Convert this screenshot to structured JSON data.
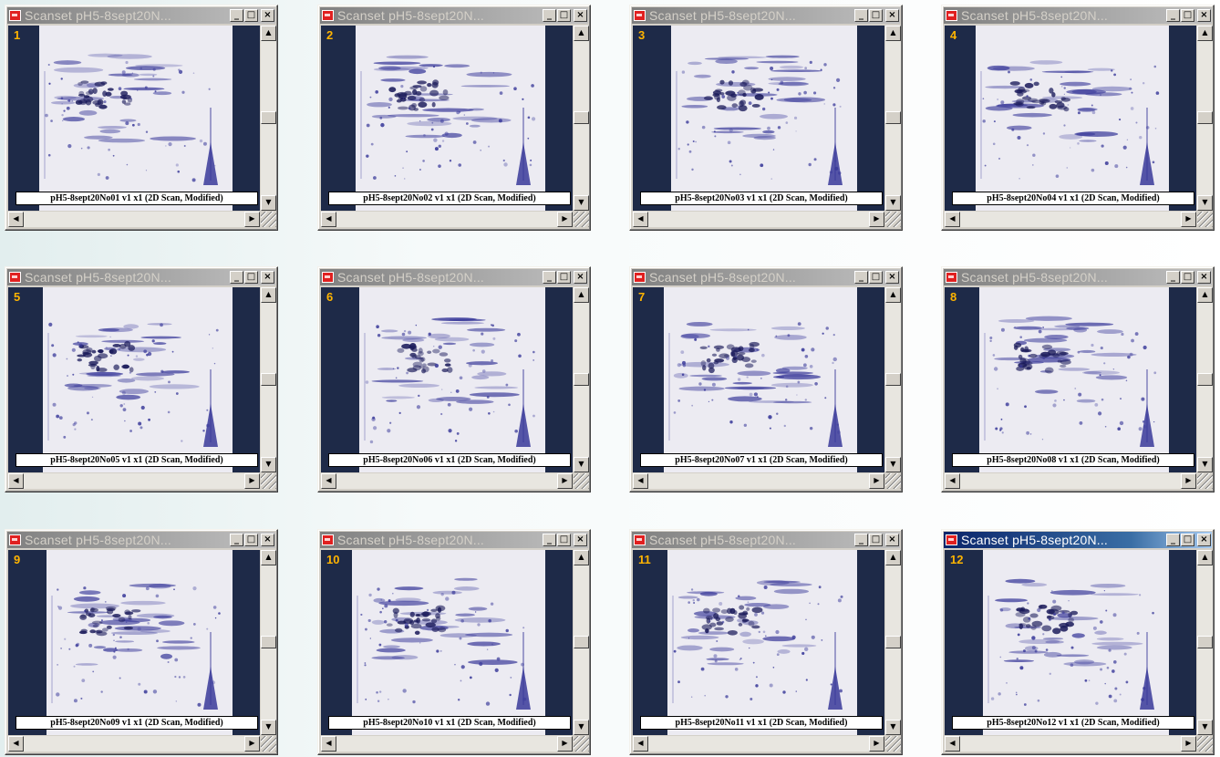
{
  "windows": [
    {
      "number": "1",
      "title": "Scanset pH5-8sept20N...",
      "caption": "pH5-8sept20No01 v1 x1 (2D Scan, Modified)",
      "active": false
    },
    {
      "number": "2",
      "title": "Scanset pH5-8sept20N...",
      "caption": "pH5-8sept20No02 v1 x1 (2D Scan, Modified)",
      "active": false
    },
    {
      "number": "3",
      "title": "Scanset pH5-8sept20N...",
      "caption": "pH5-8sept20No03 v1 x1 (2D Scan, Modified)",
      "active": false
    },
    {
      "number": "4",
      "title": "Scanset pH5-8sept20N...",
      "caption": "pH5-8sept20No04 v1 x1 (2D Scan, Modified)",
      "active": false
    },
    {
      "number": "5",
      "title": "Scanset pH5-8sept20N...",
      "caption": "pH5-8sept20No05 v1 x1 (2D Scan, Modified)",
      "active": false
    },
    {
      "number": "6",
      "title": "Scanset pH5-8sept20N...",
      "caption": "pH5-8sept20No06 v1 x1 (2D Scan, Modified)",
      "active": false
    },
    {
      "number": "7",
      "title": "Scanset pH5-8sept20N...",
      "caption": "pH5-8sept20No07 v1 x1 (2D Scan, Modified)",
      "active": false
    },
    {
      "number": "8",
      "title": "Scanset pH5-8sept20N...",
      "caption": "pH5-8sept20No08 v1 x1 (2D Scan, Modified)",
      "active": false
    },
    {
      "number": "9",
      "title": "Scanset pH5-8sept20N...",
      "caption": "pH5-8sept20No09 v1 x1 (2D Scan, Modified)",
      "active": false
    },
    {
      "number": "10",
      "title": "Scanset pH5-8sept20N...",
      "caption": "pH5-8sept20No10 v1 x1 (2D Scan, Modified)",
      "active": false
    },
    {
      "number": "11",
      "title": "Scanset pH5-8sept20N...",
      "caption": "pH5-8sept20No11 v1 x1 (2D Scan, Modified)",
      "active": false
    },
    {
      "number": "12",
      "title": "Scanset pH5-8sept20N...",
      "caption": "pH5-8sept20No12 v1 x1 (2D Scan, Modified)",
      "active": true
    }
  ],
  "controls": {
    "minimize": "_",
    "maximize": "□",
    "close": "×"
  },
  "icons": {
    "app": "scanset-app-icon",
    "up": "scroll-up-arrow-icon",
    "down": "scroll-down-arrow-icon",
    "left": "scroll-left-arrow-icon",
    "right": "scroll-right-arrow-icon",
    "grip": "resize-grip-icon"
  },
  "colors": {
    "spot": "#3a3a9a",
    "gel_background": "#ecebf2",
    "frame": "#1e2a48",
    "number": "#ffb400",
    "active_title": "#0a246a",
    "inactive_title": "#808080"
  }
}
